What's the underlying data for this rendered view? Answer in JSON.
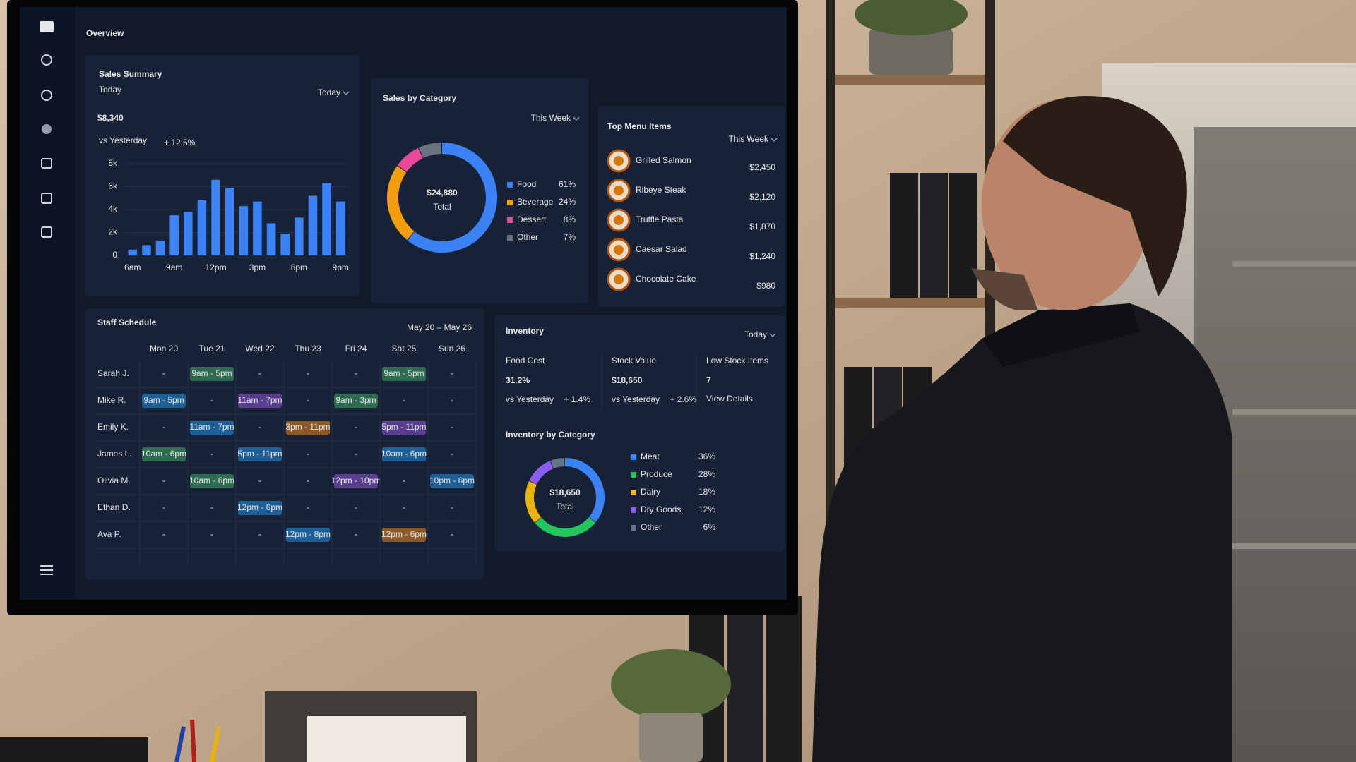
{
  "screen": {
    "title": "Overview"
  },
  "sales_summary": {
    "title": "Sales Summary",
    "period": "Today",
    "filter": "Today",
    "amount": "$8,340",
    "comparison": "vs Yesterday",
    "change": "+ 12.5%"
  },
  "sales_by_category": {
    "title": "Sales by Category",
    "filter": "This Week"
  },
  "top_menu_items": {
    "title": "Top Menu Items",
    "filter": "This Week",
    "items": [
      {
        "name": "Grilled Salmon",
        "amount": "$2,450"
      },
      {
        "name": "Ribeye Steak",
        "amount": "$2,120"
      },
      {
        "name": "Truffle Pasta",
        "amount": "$1,870"
      },
      {
        "name": "Caesar Salad",
        "amount": "$1,240"
      },
      {
        "name": "Chocolate Cake",
        "amount": "$980"
      }
    ]
  },
  "staff_schedule": {
    "title": "Staff Schedule",
    "range": "May 20 – May 26",
    "days": [
      "Mon 20",
      "Tue 21",
      "Wed 22",
      "Thu 23",
      "Fri 24",
      "Sat 25",
      "Sun 26"
    ],
    "rows": [
      {
        "name": "Sarah J.",
        "shifts": [
          "-",
          {
            "text": "9am - 5pm",
            "color": "#2e6b4f"
          },
          "-",
          "-",
          "-",
          {
            "text": "9am - 5pm",
            "color": "#2e6b4f"
          },
          "-"
        ]
      },
      {
        "name": "Mike R.",
        "shifts": [
          {
            "text": "9am - 5pm",
            "color": "#1f5f95"
          },
          "-",
          {
            "text": "11am - 7pm",
            "color": "#5b3f8f"
          },
          "-",
          {
            "text": "9am - 3pm",
            "color": "#2e6b4f"
          },
          "-",
          "-"
        ]
      },
      {
        "name": "Emily K.",
        "shifts": [
          "-",
          {
            "text": "11am - 7pm",
            "color": "#1f5f95"
          },
          "-",
          {
            "text": "3pm - 11pm",
            "color": "#8a5a2b"
          },
          "-",
          {
            "text": "5pm - 11pm",
            "color": "#5b3f8f"
          },
          "-"
        ]
      },
      {
        "name": "James L.",
        "shifts": [
          {
            "text": "10am - 6pm",
            "color": "#2e6b4f"
          },
          "-",
          {
            "text": "5pm - 11pm",
            "color": "#1f5f95"
          },
          "-",
          "-",
          {
            "text": "10am - 6pm",
            "color": "#1f5f95"
          },
          "-"
        ]
      },
      {
        "name": "Olivia M.",
        "shifts": [
          "-",
          {
            "text": "10am - 6pm",
            "color": "#2e6b4f"
          },
          "-",
          "-",
          {
            "text": "12pm - 10pm",
            "color": "#5b3f8f"
          },
          "-",
          {
            "text": "10pm - 6pm",
            "color": "#1f5f95"
          }
        ]
      },
      {
        "name": "Ethan D.",
        "shifts": [
          "-",
          "-",
          {
            "text": "12pm - 6pm",
            "color": "#1f5f95"
          },
          "-",
          "-",
          "-",
          "-"
        ]
      },
      {
        "name": "Ava P.",
        "shifts": [
          "-",
          "-",
          "-",
          {
            "text": "12pm - 8pm",
            "color": "#1f5f95"
          },
          "-",
          {
            "text": "12pm - 6pm",
            "color": "#8a5a2b"
          },
          "-"
        ]
      }
    ]
  },
  "inventory": {
    "title": "Inventory",
    "filter": "Today",
    "category_title": "Inventory by Category",
    "kpis": [
      {
        "label": "Food Cost",
        "value": "31.2%",
        "note": "vs Yesterday",
        "change": "+ 1.4%",
        "color": "#4ade80"
      },
      {
        "label": "Stock Value",
        "value": "$18,650",
        "note": "vs Yesterday",
        "change": "+ 2.6%",
        "color": "#f87171"
      },
      {
        "label": "Low Stock Items",
        "value": "7",
        "link": "View Details"
      }
    ]
  },
  "chart_data": [
    {
      "type": "bar",
      "categories": [
        "6am",
        null,
        null,
        "9am",
        null,
        null,
        "12pm",
        null,
        null,
        "3pm",
        null,
        null,
        "6pm",
        null,
        null,
        "9pm"
      ],
      "values": [
        500,
        900,
        1300,
        3500,
        3800,
        4800,
        6600,
        5900,
        4300,
        4700,
        2800,
        1900,
        3300,
        5200,
        6300,
        4700
      ],
      "color": "#3b82f6",
      "ylim": [
        0,
        8000
      ],
      "yticks": [
        0,
        {
          "value": 2000,
          "label": "2k"
        },
        {
          "value": 4000,
          "label": "4k"
        },
        {
          "value": 6000,
          "label": "6k"
        },
        {
          "value": 8000,
          "label": "8k"
        }
      ]
    },
    {
      "type": "pie",
      "center_label": "$24,880",
      "center_sublabel": "Total",
      "categories": [
        "Food",
        "Beverage",
        "Dessert",
        "Other"
      ],
      "values": [
        61,
        24,
        8,
        7
      ],
      "value_labels": [
        "61%",
        "24%",
        "8%",
        "7%"
      ],
      "colors": [
        "#3b82f6",
        "#f59e0b",
        "#ec4899",
        "#6b7280"
      ]
    },
    {
      "type": "pie",
      "center_label": "$18,650",
      "center_sublabel": "Total",
      "categories": [
        "Meat",
        "Produce",
        "Dairy",
        "Dry Goods",
        "Other"
      ],
      "values": [
        36,
        28,
        18,
        12,
        6
      ],
      "value_labels": [
        "36%",
        "28%",
        "18%",
        "12%",
        "6%"
      ],
      "colors": [
        "#3b82f6",
        "#22c55e",
        "#eab308",
        "#8b5cf6",
        "#64748b"
      ]
    }
  ]
}
